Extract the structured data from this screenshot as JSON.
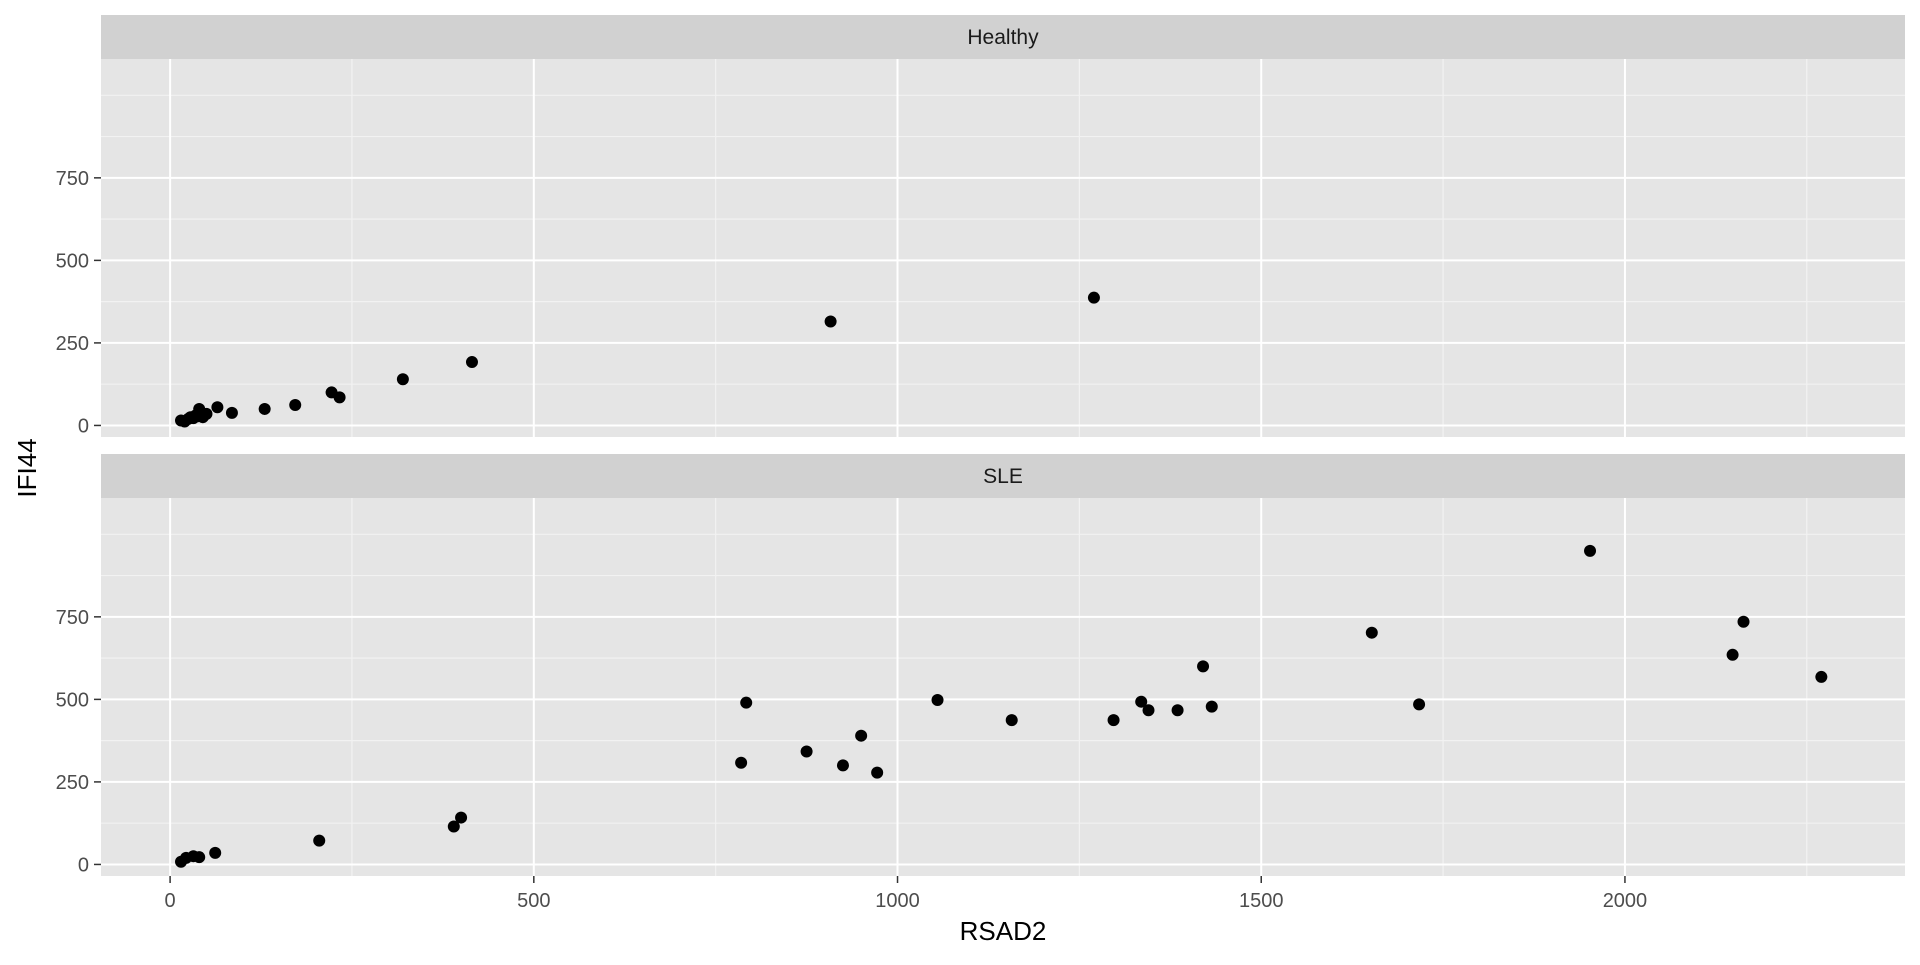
{
  "chart_data": {
    "type": "scatter",
    "xlabel": "RSAD2",
    "ylabel": "IFI44",
    "xlim": [
      -95,
      2385
    ],
    "ylim": [
      -35,
      1110
    ],
    "x_ticks": [
      0,
      500,
      1000,
      1500,
      2000
    ],
    "x_minor": [
      250,
      750,
      1250,
      1750,
      2250
    ],
    "y_ticks": [
      0,
      250,
      500,
      750
    ],
    "y_minor": [
      125,
      375,
      625,
      875,
      1000
    ],
    "grid": true,
    "legend": "none",
    "point_color": "#000000",
    "panel_color": "#e5e5e5",
    "strip_color": "#d1d1d1",
    "facets": [
      {
        "label": "Healthy",
        "points": [
          [
            15,
            15
          ],
          [
            20,
            12
          ],
          [
            25,
            20
          ],
          [
            28,
            25
          ],
          [
            32,
            22
          ],
          [
            35,
            30
          ],
          [
            38,
            28
          ],
          [
            40,
            50
          ],
          [
            45,
            25
          ],
          [
            50,
            35
          ],
          [
            65,
            55
          ],
          [
            85,
            38
          ],
          [
            130,
            50
          ],
          [
            172,
            62
          ],
          [
            222,
            100
          ],
          [
            233,
            85
          ],
          [
            320,
            140
          ],
          [
            415,
            192
          ],
          [
            908,
            315
          ],
          [
            1270,
            387
          ]
        ]
      },
      {
        "label": "SLE",
        "points": [
          [
            15,
            8
          ],
          [
            22,
            20
          ],
          [
            32,
            25
          ],
          [
            40,
            22
          ],
          [
            62,
            35
          ],
          [
            205,
            72
          ],
          [
            390,
            115
          ],
          [
            400,
            142
          ],
          [
            785,
            308
          ],
          [
            792,
            490
          ],
          [
            875,
            342
          ],
          [
            925,
            300
          ],
          [
            950,
            390
          ],
          [
            972,
            278
          ],
          [
            1055,
            498
          ],
          [
            1157,
            437
          ],
          [
            1297,
            437
          ],
          [
            1335,
            493
          ],
          [
            1345,
            467
          ],
          [
            1385,
            467
          ],
          [
            1420,
            600
          ],
          [
            1432,
            478
          ],
          [
            1652,
            702
          ],
          [
            1717,
            485
          ],
          [
            1952,
            950
          ],
          [
            2148,
            635
          ],
          [
            2163,
            735
          ],
          [
            2270,
            568
          ]
        ]
      }
    ]
  }
}
